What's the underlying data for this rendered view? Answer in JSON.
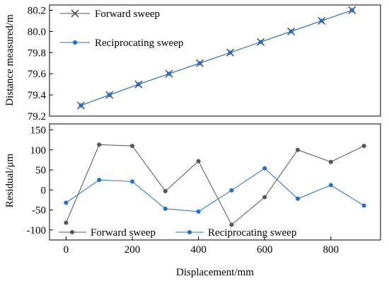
{
  "chart_data": [
    {
      "type": "line",
      "ylabel": "Distance measured/m",
      "ylim": [
        79.2,
        80.25
      ],
      "yticks": [
        79.2,
        79.4,
        79.6,
        79.8,
        80.0,
        80.2
      ],
      "ytick_labels": [
        "79.2",
        "79.4",
        "79.6",
        "79.8",
        "80.0",
        "80.2"
      ],
      "legend_position": "top-left",
      "series": [
        {
          "name": "Forward sweep",
          "color": "#555555",
          "marker": "x",
          "x": [
            45,
            131,
            219,
            311,
            404,
            496,
            588,
            680,
            772,
            864
          ],
          "y": [
            79.3,
            79.4,
            79.5,
            79.6,
            79.7,
            79.8,
            79.9,
            80.0,
            80.1,
            80.2
          ]
        },
        {
          "name": "Reciprocating sweep",
          "color": "#1f6fd1",
          "marker": "circle",
          "x": [
            45,
            131,
            219,
            311,
            404,
            496,
            588,
            680,
            772,
            864
          ],
          "y": [
            79.3,
            79.4,
            79.5,
            79.6,
            79.7,
            79.8,
            79.9,
            80.0,
            80.1,
            80.2
          ]
        }
      ]
    },
    {
      "type": "line",
      "xlabel": "Displacement/mm",
      "ylabel": "Residual/μm",
      "xlim": [
        -50,
        950
      ],
      "ylim": [
        -125,
        165
      ],
      "xticks": [
        0,
        200,
        400,
        600,
        800
      ],
      "xtick_labels": [
        "0",
        "200",
        "400",
        "600",
        "800"
      ],
      "yticks": [
        -100,
        -50,
        0,
        50,
        100,
        150
      ],
      "ytick_labels": [
        "-100",
        "-50",
        "0",
        "50",
        "100",
        "150"
      ],
      "legend_position": "bottom",
      "series": [
        {
          "name": "Forward sweep",
          "color": "#555555",
          "marker": "circle",
          "x": [
            0,
            100,
            200,
            300,
            400,
            500,
            600,
            700,
            800,
            900
          ],
          "y": [
            -82,
            113,
            110,
            -3,
            72,
            -87,
            -18,
            100,
            70,
            110
          ]
        },
        {
          "name": "Reciprocating sweep",
          "color": "#1f6fd1",
          "marker": "circle",
          "x": [
            0,
            100,
            200,
            300,
            400,
            500,
            600,
            700,
            800,
            900
          ],
          "y": [
            -32,
            25,
            21,
            -47,
            -54,
            -1,
            54,
            -22,
            12,
            -39
          ]
        }
      ]
    }
  ]
}
